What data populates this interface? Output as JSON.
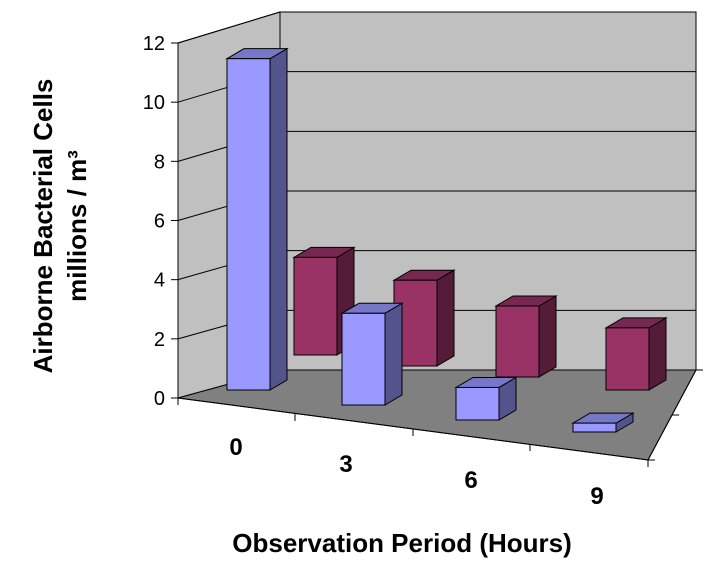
{
  "chart_data": {
    "type": "bar",
    "projection": "3d",
    "categories": [
      "0",
      "3",
      "6",
      "9"
    ],
    "series": [
      {
        "values": [
          11.2,
          3.1,
          1.1,
          0.3
        ],
        "color": "#9999ff"
      },
      {
        "values": [
          3.3,
          2.9,
          2.4,
          2.1
        ],
        "color": "#993366"
      }
    ],
    "xlabel": "Observation Period (Hours)",
    "ylabel": [
      "Airborne Bacterial Cells",
      "millions / m³"
    ],
    "yticks": [
      "0",
      "2",
      "4",
      "6",
      "8",
      "10",
      "12"
    ],
    "ylim": [
      0,
      12
    ],
    "grid": true,
    "colors": {
      "back_wall": "#c0c0c0",
      "side_wall": "#c0c0c0",
      "floor": "#808080"
    }
  }
}
